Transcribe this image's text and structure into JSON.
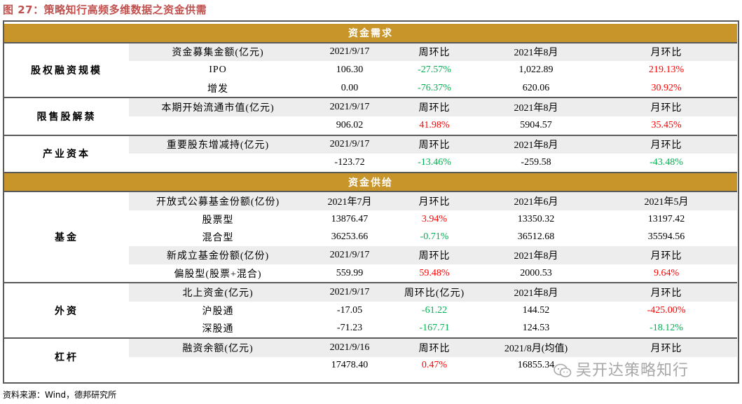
{
  "figure_title": "图 27：策略知行高频多维数据之资金供需",
  "section_demand": "资金需求",
  "section_supply": "资金供给",
  "groups": {
    "equity_financing": "股权融资规模",
    "lockup": "限售股解禁",
    "industrial_capital": "产业资本",
    "fund": "基金",
    "foreign": "外资",
    "leverage": "杠杆"
  },
  "rows": {
    "ef_head": [
      "资金募集金额(亿元)",
      "2021/9/17",
      "周环比",
      "2021年8月",
      "月环比"
    ],
    "ef_ipo": [
      "IPO",
      "106.30",
      "-27.57%",
      "1,022.89",
      "219.13%"
    ],
    "ef_add": [
      "增发",
      "0.00",
      "-76.37%",
      "620.06",
      "30.92%"
    ],
    "lu_head": [
      "本期开始流通市值(亿元)",
      "2021/9/17",
      "周环比",
      "2021年8月",
      "月环比"
    ],
    "lu_val": [
      "",
      "906.02",
      "41.98%",
      "5904.57",
      "35.45%"
    ],
    "ic_head": [
      "重要股东增减持(亿元)",
      "2021/9/17",
      "周环比",
      "2021年8月",
      "月环比"
    ],
    "ic_val": [
      "",
      "-123.72",
      "-13.46%",
      "-259.58",
      "-43.48%"
    ],
    "fd_head": [
      "开放式公募基金份额(亿份)",
      "2021年7月",
      "月环比",
      "2021年6月",
      "2021年5月"
    ],
    "fd_stock": [
      "股票型",
      "13876.47",
      "3.94%",
      "13350.32",
      "13197.42"
    ],
    "fd_mixed": [
      "混合型",
      "36253.66",
      "-0.71%",
      "36512.68",
      "35594.56"
    ],
    "fd_new_head": [
      "新成立基金份额(亿份)",
      "2021/9/17",
      "周环比",
      "2021年8月",
      "月环比"
    ],
    "fd_new": [
      "偏股型(股票+混合)",
      "559.99",
      "59.48%",
      "2000.53",
      "9.64%"
    ],
    "fx_head": [
      "北上资金(亿元)",
      "2021/9/17",
      "周环比(亿元)",
      "2021年8月",
      "月环比"
    ],
    "fx_sh": [
      "沪股通",
      "-17.05",
      "-61.22",
      "144.52",
      "-425.00%"
    ],
    "fx_sz": [
      "深股通",
      "-71.23",
      "-167.71",
      "124.53",
      "-18.12%"
    ],
    "lv_head": [
      "融资余额(亿元)",
      "2021/9/16",
      "周环比",
      "2021/8月(均值)",
      "月环比"
    ],
    "lv_val": [
      "",
      "17478.40",
      "0.47%",
      "16855.34",
      ""
    ]
  },
  "source": "资料来源：Wind，德邦研究所",
  "watermark": "吴开达策略知行",
  "colors": {
    "band": "#c8952a",
    "subheader": "#ededed",
    "positive": "#ff0000",
    "negative": "#00b050",
    "title": "#c0504d"
  }
}
